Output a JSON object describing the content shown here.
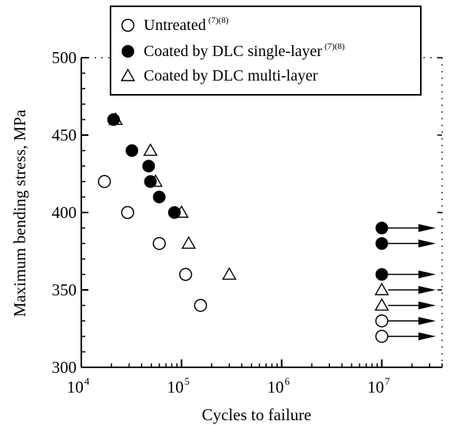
{
  "chart_data": {
    "type": "scatter",
    "title": "",
    "xlabel": "Cycles to failure",
    "ylabel": "Maximum bending stress,  MPa",
    "xscale": "log",
    "xlim": [
      10000,
      40000000
    ],
    "ylim": [
      300,
      500
    ],
    "x_ticks": [
      {
        "value": 10000,
        "base": "10",
        "exp": "4"
      },
      {
        "value": 100000,
        "base": "10",
        "exp": "5"
      },
      {
        "value": 1000000,
        "base": "10",
        "exp": "6"
      },
      {
        "value": 10000000,
        "base": "10",
        "exp": "7"
      }
    ],
    "y_ticks": [
      {
        "value": 300,
        "label": "300"
      },
      {
        "value": 350,
        "label": "350"
      },
      {
        "value": 400,
        "label": "400"
      },
      {
        "value": 450,
        "label": "450"
      },
      {
        "value": 500,
        "label": "500"
      }
    ],
    "legend_position": "top",
    "series": [
      {
        "name": "Untreated",
        "name_sup": "(7)(8)",
        "marker": "open-circle",
        "points": [
          [
            17000,
            420
          ],
          [
            29000,
            400
          ],
          [
            60000,
            380
          ],
          [
            110000,
            360
          ],
          [
            155000,
            340
          ]
        ],
        "runouts": [
          [
            10000000,
            330
          ],
          [
            10000000,
            320
          ]
        ]
      },
      {
        "name": "Coated by DLC single-layer",
        "name_sup": "(7)(8)",
        "marker": "filled-circle",
        "points": [
          [
            21000,
            460
          ],
          [
            32000,
            440
          ],
          [
            47000,
            430
          ],
          [
            49000,
            420
          ],
          [
            60000,
            410
          ],
          [
            85000,
            400
          ]
        ],
        "runouts": [
          [
            10000000,
            390
          ],
          [
            10000000,
            380
          ],
          [
            10000000,
            360
          ]
        ]
      },
      {
        "name": "Coated by DLC multi-layer",
        "name_sup": "",
        "marker": "open-triangle",
        "points": [
          [
            22000,
            460
          ],
          [
            49000,
            440
          ],
          [
            55000,
            420
          ],
          [
            100000,
            400
          ],
          [
            118000,
            380
          ],
          [
            300000,
            360
          ]
        ],
        "runouts": [
          [
            10000000,
            350
          ],
          [
            10000000,
            340
          ]
        ]
      }
    ]
  }
}
